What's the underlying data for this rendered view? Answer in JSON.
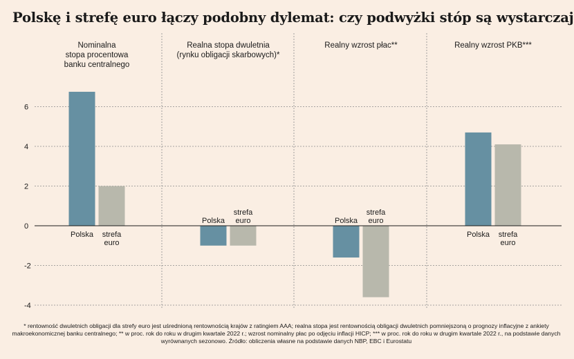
{
  "title": "Polskę i strefę euro łączy podobny dylemat: czy podwyżki stóp są wystarczające",
  "footnote": "* rentowność dwuletnich obligacji dla strefy euro jest uśrednioną rentownością krajów z ratingiem AAA; realna stopa jest rentownością obligacji dwuletnich pomniejszoną o prognozy inflacyjne z ankiety makroekonomicznej banku centralnego; ** w proc. rok do roku w drugim kwartale 2022 r.; wzrost nominalny płac po odjęciu inflacji HICP; *** w proc. rok do roku w drugim kwartale 2022 r., na podstawie danych wyrównanych sezonowo. Źródło: obliczenia własne na podstawie danych NBP, EBC i Eurostatu",
  "colors": {
    "polska": "#6690a2",
    "strefa_euro": "#b8b8ac",
    "background": "#faeee3"
  },
  "chart_data": {
    "type": "bar",
    "ylim": [
      -4,
      6
    ],
    "yticks": [
      6,
      4,
      2,
      0,
      -2,
      -4
    ],
    "grid": true,
    "series": [
      {
        "name": "Polska",
        "values": [
          6.75,
          -1.0,
          -1.6,
          4.7
        ]
      },
      {
        "name": "strefa euro",
        "values": [
          2.0,
          -1.0,
          -3.6,
          4.1
        ]
      }
    ],
    "panels": [
      {
        "title": [
          "Nominalna",
          "stopa procentowa",
          "banku centralnego"
        ]
      },
      {
        "title": [
          "Realna stopa dwuletnia",
          "(rynku obligacji skarbowych)*"
        ]
      },
      {
        "title": [
          "Realny wzrost płac**"
        ]
      },
      {
        "title": [
          "Realny wzrost PKB***"
        ]
      }
    ]
  }
}
